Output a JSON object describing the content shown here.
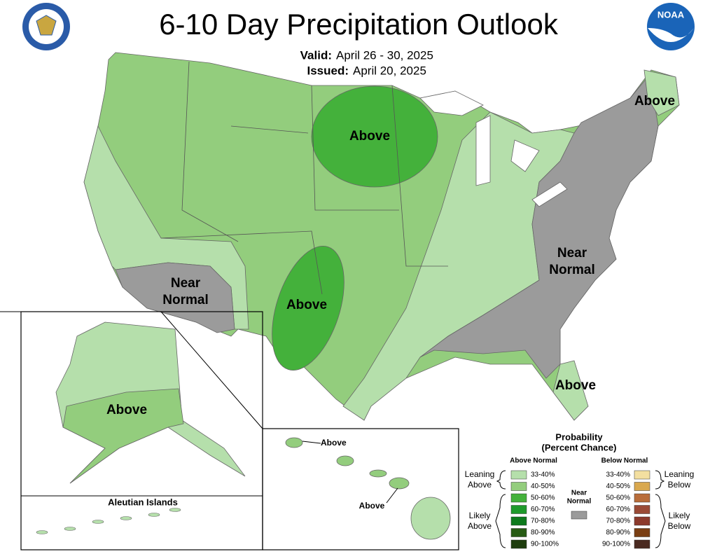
{
  "header": {
    "title": "6-10 Day Precipitation Outlook",
    "valid_label": "Valid:",
    "valid": "April 26 - 30, 2025",
    "issued_label": "Issued:",
    "issued": "April 20, 2025"
  },
  "logos": {
    "noaa": "NOAA"
  },
  "map_labels": [
    {
      "lines": [
        "Above"
      ]
    },
    {
      "lines": [
        "Above"
      ]
    },
    {
      "lines": [
        "Near",
        "Normal"
      ]
    },
    {
      "lines": [
        "Above"
      ]
    },
    {
      "lines": [
        "Near",
        "Normal"
      ]
    },
    {
      "lines": [
        "Above"
      ]
    },
    {
      "lines": [
        "Above"
      ]
    },
    {
      "lines": [
        "Above"
      ]
    },
    {
      "lines": [
        "Above"
      ]
    }
  ],
  "insets": {
    "aleutian_title": "Aleutian Islands"
  },
  "legend": {
    "title": "Probability",
    "subtitle": "(Percent Chance)",
    "above": {
      "header": "Above Normal",
      "bins": [
        {
          "label": "33-40%",
          "color": "#b5dfab"
        },
        {
          "label": "40-50%",
          "color": "#93cd7d"
        },
        {
          "label": "50-60%",
          "color": "#44b13b"
        },
        {
          "label": "60-70%",
          "color": "#1e9a2a"
        },
        {
          "label": "70-80%",
          "color": "#0d7a1c"
        },
        {
          "label": "80-90%",
          "color": "#275b14"
        },
        {
          "label": "90-100%",
          "color": "#1e3d0e"
        }
      ]
    },
    "below": {
      "header": "Below Normal",
      "bins": [
        {
          "label": "33-40%",
          "color": "#f3dfa0"
        },
        {
          "label": "40-50%",
          "color": "#d9a84e"
        },
        {
          "label": "50-60%",
          "color": "#b96d3a"
        },
        {
          "label": "60-70%",
          "color": "#9a4a36"
        },
        {
          "label": "70-80%",
          "color": "#8c3a2c"
        },
        {
          "label": "80-90%",
          "color": "#7a3e12"
        },
        {
          "label": "90-100%",
          "color": "#4a2a20"
        }
      ]
    },
    "near_normal": {
      "lines": [
        "Near",
        "Normal"
      ],
      "color": "#9b9b9b"
    },
    "groups": [
      {
        "lines": [
          "Leaning",
          "Above"
        ]
      },
      {
        "lines": [
          "Likely",
          "Above"
        ]
      },
      {
        "lines": [
          "Leaning",
          "Below"
        ]
      },
      {
        "lines": [
          "Likely",
          "Below"
        ]
      }
    ]
  }
}
